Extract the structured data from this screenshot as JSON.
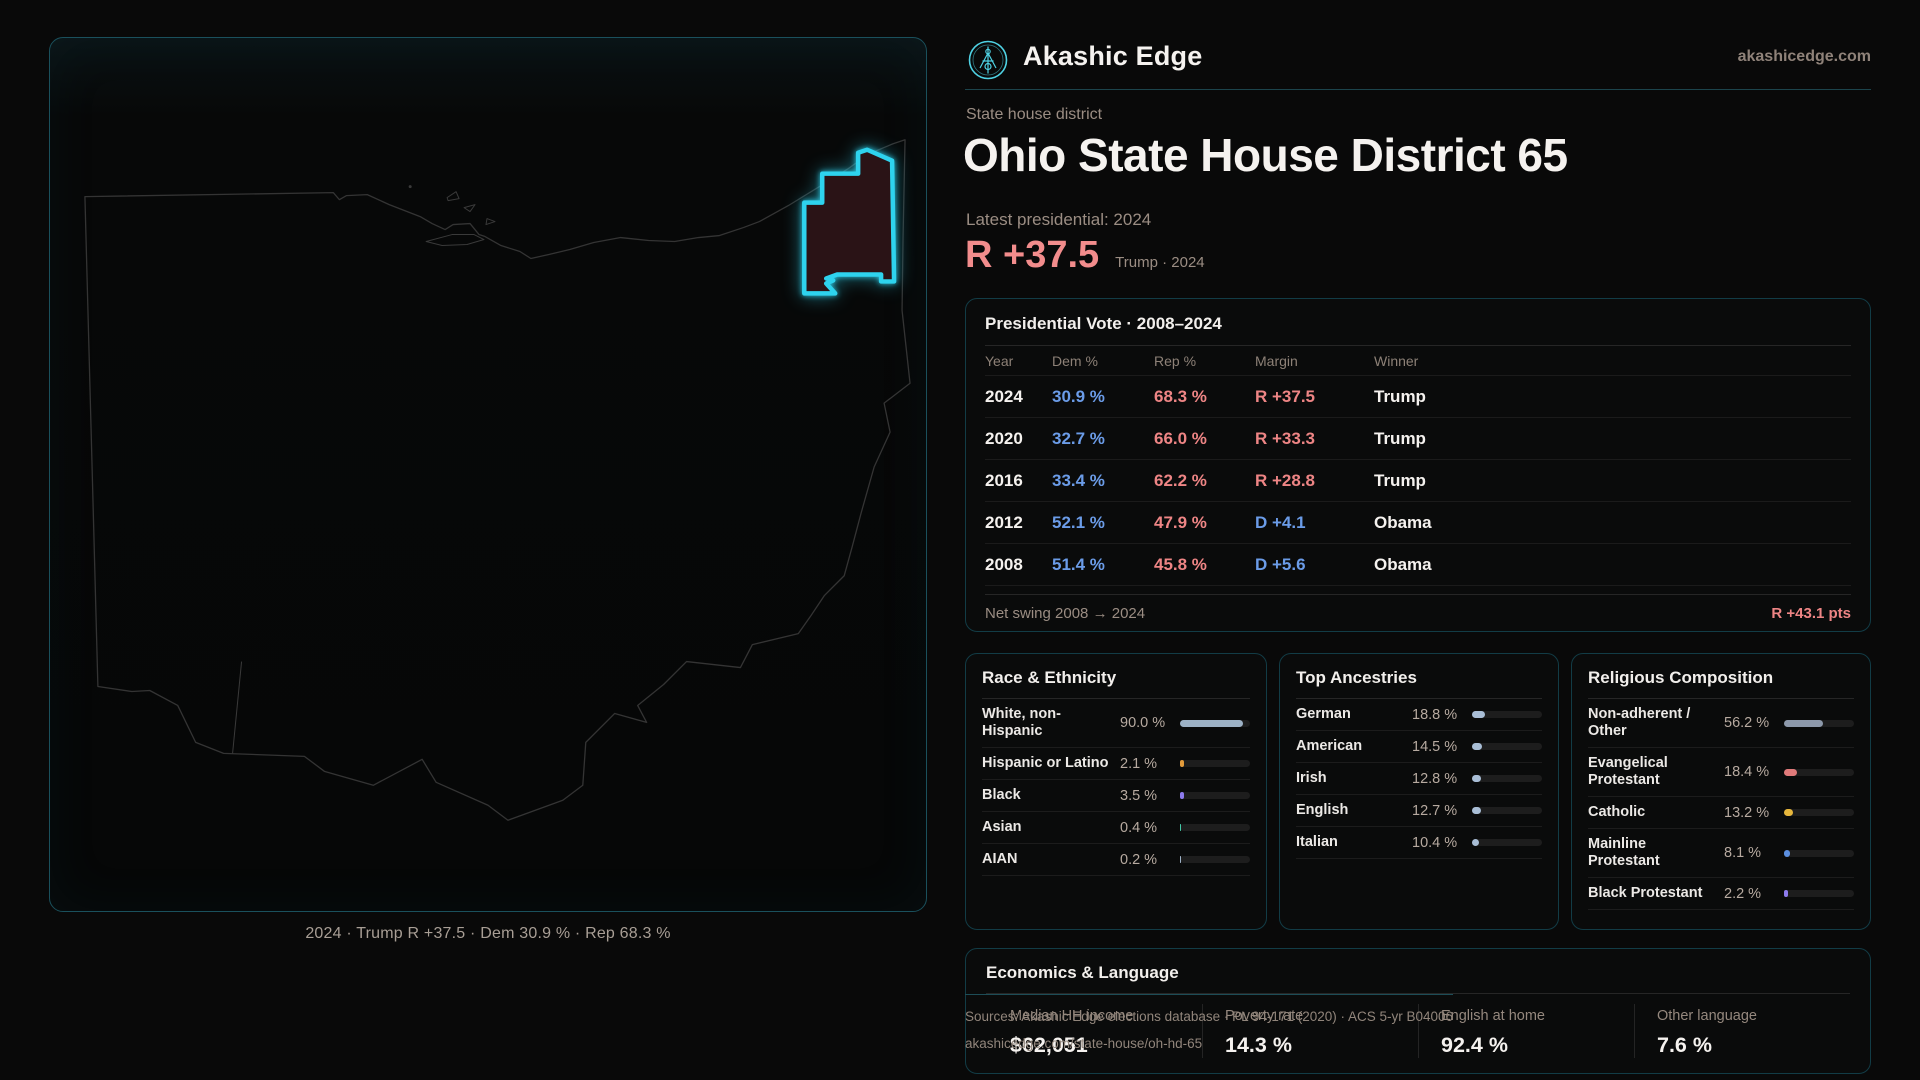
{
  "theme": {
    "accent_cyan": "#2ed3ee",
    "dem_blue": "#6b9ce8",
    "rep_red": "#ee8585",
    "panel_border": "#123c46",
    "muted_text": "#97897f"
  },
  "brand": {
    "name": "Akashic Edge",
    "domain": "akashicedge.com"
  },
  "header": {
    "kicker": "State house district",
    "title": "Ohio State House District 65",
    "latest_label": "Latest presidential: 2024",
    "margin_value": "R +37.5",
    "margin_context": "Trump · 2024"
  },
  "map": {
    "caption": "2024 · Trump R +37.5 · Dem 30.9 % · Rep 68.3 %",
    "district_fill": "#2a1316",
    "district_stroke": "#2ed3ee",
    "state_outline": "#343434"
  },
  "vote_table": {
    "title": "Presidential Vote · 2008–2024",
    "columns": [
      "Year",
      "Dem %",
      "Rep %",
      "Margin",
      "Winner"
    ],
    "rows": [
      {
        "year": "2024",
        "dem": "30.9 %",
        "rep": "68.3 %",
        "margin": "R +37.5",
        "party": "rep",
        "winner": "Trump"
      },
      {
        "year": "2020",
        "dem": "32.7 %",
        "rep": "66.0 %",
        "margin": "R +33.3",
        "party": "rep",
        "winner": "Trump"
      },
      {
        "year": "2016",
        "dem": "33.4 %",
        "rep": "62.2 %",
        "margin": "R +28.8",
        "party": "rep",
        "winner": "Trump"
      },
      {
        "year": "2012",
        "dem": "52.1 %",
        "rep": "47.9 %",
        "margin": "D +4.1",
        "party": "dem",
        "winner": "Obama"
      },
      {
        "year": "2008",
        "dem": "51.4 %",
        "rep": "45.8 %",
        "margin": "D +5.6",
        "party": "dem",
        "winner": "Obama"
      }
    ],
    "net_swing_label": "Net swing 2008 → 2024",
    "net_swing_value": "R +43.1 pts"
  },
  "race": {
    "title": "Race & Ethnicity",
    "rows": [
      {
        "label": "White, non-Hispanic",
        "value": "90.0 %",
        "pct": 90.0,
        "color": "#9db2c6"
      },
      {
        "label": "Hispanic or Latino",
        "value": "2.1 %",
        "pct": 2.1,
        "color": "#e39b3b"
      },
      {
        "label": "Black",
        "value": "3.5 %",
        "pct": 3.5,
        "color": "#8d7bed"
      },
      {
        "label": "Asian",
        "value": "0.4 %",
        "pct": 0.4,
        "color": "#43c9a7"
      },
      {
        "label": "AIAN",
        "value": "0.2 %",
        "pct": 0.2,
        "color": "#9db2c6"
      }
    ]
  },
  "ancestries": {
    "title": "Top Ancestries",
    "rows": [
      {
        "label": "German",
        "value": "18.8 %",
        "pct": 18.8,
        "color": "#a9bed6"
      },
      {
        "label": "American",
        "value": "14.5 %",
        "pct": 14.5,
        "color": "#a9bed6"
      },
      {
        "label": "Irish",
        "value": "12.8 %",
        "pct": 12.8,
        "color": "#a9bed6"
      },
      {
        "label": "English",
        "value": "12.7 %",
        "pct": 12.7,
        "color": "#a9bed6"
      },
      {
        "label": "Italian",
        "value": "10.4 %",
        "pct": 10.4,
        "color": "#a9bed6"
      }
    ]
  },
  "religion": {
    "title": "Religious Composition",
    "rows": [
      {
        "label": "Non-adherent / Other",
        "value": "56.2 %",
        "pct": 56.2,
        "color": "#8d99ab"
      },
      {
        "label": "Evangelical Protestant",
        "value": "18.4 %",
        "pct": 18.4,
        "color": "#e07a7a"
      },
      {
        "label": "Catholic",
        "value": "13.2 %",
        "pct": 13.2,
        "color": "#e6b63c"
      },
      {
        "label": "Mainline Protestant",
        "value": "8.1 %",
        "pct": 8.1,
        "color": "#5b8fe0"
      },
      {
        "label": "Black Protestant",
        "value": "2.2 %",
        "pct": 2.2,
        "color": "#8d7bed"
      }
    ]
  },
  "economics": {
    "title": "Economics & Language",
    "stats": [
      {
        "label": "Median HH income",
        "value": "$62,051"
      },
      {
        "label": "Poverty rate",
        "value": "14.3 %"
      },
      {
        "label": "English at home",
        "value": "92.4 %"
      },
      {
        "label": "Other language",
        "value": "7.6 %"
      }
    ]
  },
  "footer": {
    "line1": "Sources: Akashic Edge elections database · PL 94-171 (2020) · ACS 5-yr B04006",
    "line2": "akashicedge.com/state-house/oh-hd-65"
  }
}
